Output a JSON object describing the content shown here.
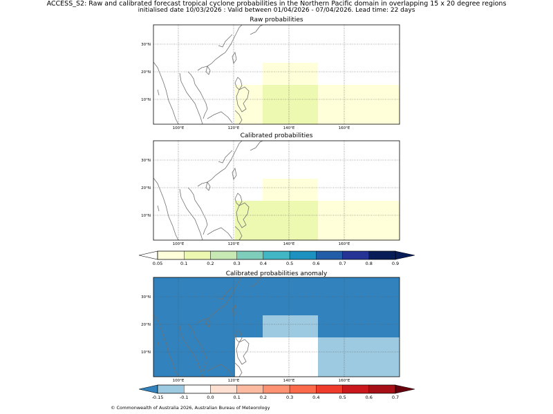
{
  "header": {
    "line1": "ACCESS_S2: Raw and calibrated forecast tropical cyclone probabilities in the Northern Pacific domain in overlapping 15 x 20 degree regions",
    "line2": "initialised date 10/03/2026 :  Valid between 01/04/2026 - 07/04/2026. Lead time: 22 days"
  },
  "panels": [
    {
      "title": "Raw probabilities"
    },
    {
      "title": "Calibrated probabilities"
    },
    {
      "title": "Calibrated probabilities anomaly"
    }
  ],
  "axis": {
    "lon_labels": [
      "100°E",
      "120°E",
      "140°E",
      "160°E"
    ],
    "lat_labels": [
      "30°N",
      "20°N",
      "10°N"
    ]
  },
  "colorbar_prob": {
    "labels": [
      "0.05",
      "0.1",
      "0.2",
      "0.3",
      "0.4",
      "0.5",
      "0.6",
      "0.7",
      "0.8",
      "0.9"
    ],
    "colors": [
      "#ffffd9",
      "#edf8b1",
      "#c7e9b4",
      "#7fcdbb",
      "#41b6c4",
      "#1d91c0",
      "#225ea8",
      "#253494",
      "#081d58"
    ]
  },
  "colorbar_anom": {
    "labels": [
      "-0.15",
      "-0.1",
      "0.0",
      "0.1",
      "0.2",
      "0.3",
      "0.4",
      "0.5",
      "0.6",
      "0.7"
    ],
    "colors": [
      "#9ecae1",
      "#ffffff",
      "#fee0d2",
      "#fcbba1",
      "#fc9272",
      "#fb6a4a",
      "#ef3b2c",
      "#cb181d",
      "#a50f15"
    ],
    "under_color": "#3182bd",
    "over_color": "#67000d"
  },
  "footer": "© Commonwealth of Australia 2026, Australian Bureau of Meteorology"
}
